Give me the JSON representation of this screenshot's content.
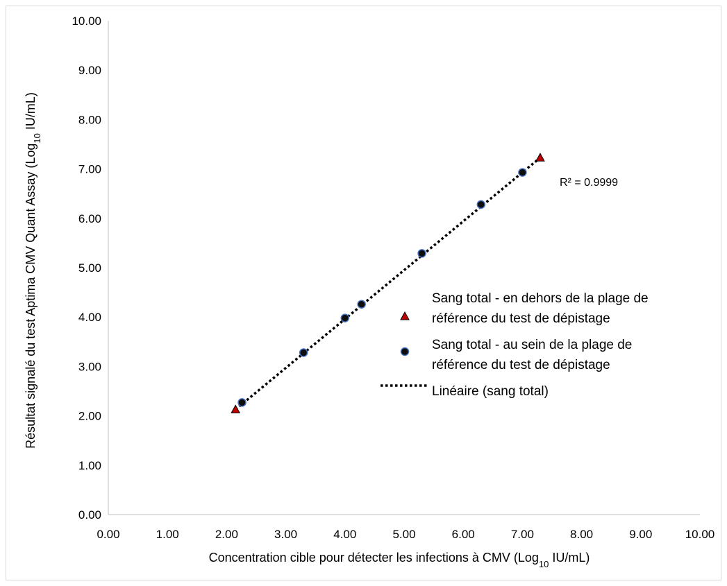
{
  "chart_data": {
    "type": "scatter",
    "title": "",
    "xlabel": {
      "prefix": "Concentration cible pour détecter les infections à CMV (Log",
      "sub": "10",
      "suffix": " IU/mL)"
    },
    "ylabel": {
      "prefix": "Résultat signalé du test Aptima CMV Quant Assay (Log",
      "sub": "10",
      "suffix": " IU/mL)"
    },
    "xlim": [
      0,
      10
    ],
    "ylim": [
      0,
      10
    ],
    "x_ticks": [
      "0.00",
      "1.00",
      "2.00",
      "3.00",
      "4.00",
      "5.00",
      "6.00",
      "7.00",
      "8.00",
      "9.00",
      "10.00"
    ],
    "y_ticks": [
      "0.00",
      "1.00",
      "2.00",
      "3.00",
      "4.00",
      "5.00",
      "6.00",
      "7.00",
      "8.00",
      "9.00",
      "10.00"
    ],
    "grid": false,
    "legend_position": "right",
    "series": [
      {
        "name_lines": [
          "Sang total - en dehors de la plage de",
          "référence du test de dépistage"
        ],
        "marker": "triangle",
        "color": "#c00000",
        "points": [
          {
            "x": 2.15,
            "y": 2.13
          },
          {
            "x": 7.3,
            "y": 7.23
          }
        ]
      },
      {
        "name_lines": [
          "Sang total - au sein de la plage de",
          "référence du test de dépistage"
        ],
        "marker": "circle",
        "color": "#0d0d0d",
        "stroke": "#4472c4",
        "points": [
          {
            "x": 2.26,
            "y": 2.27
          },
          {
            "x": 3.3,
            "y": 3.28
          },
          {
            "x": 4.0,
            "y": 3.98
          },
          {
            "x": 4.28,
            "y": 4.26
          },
          {
            "x": 5.3,
            "y": 5.29
          },
          {
            "x": 6.3,
            "y": 6.28
          },
          {
            "x": 7.0,
            "y": 6.93
          }
        ]
      }
    ],
    "trendline": {
      "name": "Linéaire (sang total)",
      "style": "dotted",
      "color": "#000000",
      "x_range": [
        2.15,
        7.3
      ],
      "slope": 0.99,
      "intercept": 0.0
    },
    "annotation": "R² = 0.9999"
  }
}
